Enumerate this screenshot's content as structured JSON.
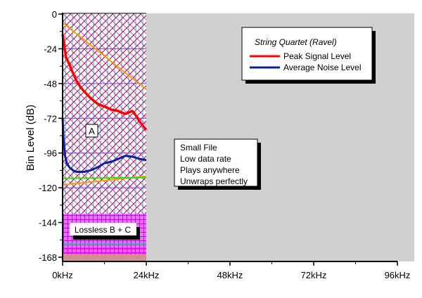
{
  "chart_data": {
    "type": "line",
    "title": "",
    "xlabel": "",
    "ylabel": "Bin Level (dB)",
    "xlim": [
      0,
      96
    ],
    "ylim": [
      -171,
      0
    ],
    "x_ticks": [
      0,
      24,
      48,
      72,
      96
    ],
    "x_tick_labels": [
      "0kHz",
      "24kHz",
      "48kHz",
      "72kHz",
      "96kHz"
    ],
    "y_ticks": [
      0,
      -24,
      -48,
      -72,
      -96,
      -120,
      -144,
      -168
    ],
    "y_tick_labels": [
      "0",
      "-24",
      "-48",
      "-72",
      "-96",
      "-120",
      "-144",
      "-168"
    ],
    "legend": {
      "title": "String Quartet (Ravel)",
      "placement": "top-right",
      "entries": [
        "Peak Signal Level",
        "Average Noise Level"
      ]
    },
    "series": [
      {
        "name": "Peak Signal Level",
        "color": "#ff0000",
        "x": [
          0,
          0.5,
          1,
          2,
          3,
          4,
          5,
          6,
          8,
          10,
          12,
          14,
          16,
          18,
          19,
          20,
          21,
          22,
          23,
          24
        ],
        "y": [
          -14,
          -22,
          -30,
          -35,
          -41,
          -46,
          -50,
          -53,
          -58,
          -62,
          -64,
          -66,
          -67,
          -69,
          -68,
          -67,
          -70,
          -74,
          -77,
          -80
        ]
      },
      {
        "name": "Average Noise Level",
        "color": "#0a1fa0",
        "x": [
          0,
          0.3,
          0.7,
          1.2,
          2,
          3,
          4,
          6,
          8,
          10,
          12,
          14,
          16,
          18,
          20,
          22,
          24
        ],
        "y": [
          -72,
          -88,
          -98,
          -103,
          -106,
          -108,
          -109,
          -109,
          -108,
          -106,
          -103,
          -102,
          -100,
          -98,
          -98.5,
          -100,
          -101
        ]
      },
      {
        "name": "orange-upper",
        "color": "#ff9900",
        "x": [
          0,
          24
        ],
        "y": [
          -6,
          -52
        ]
      },
      {
        "name": "orange-lower",
        "color": "#ff9900",
        "x": [
          0,
          24
        ],
        "y": [
          -118,
          -112
        ]
      },
      {
        "name": "green",
        "color": "#33dd00",
        "x": [
          0,
          24
        ],
        "y": [
          -113.5,
          -113
        ]
      }
    ],
    "regions": [
      {
        "label": "A",
        "x": [
          0,
          24
        ],
        "y": [
          -171,
          0
        ]
      },
      {
        "label": "Lossless B + C",
        "x": [
          0,
          24
        ],
        "y": [
          -171,
          -138
        ]
      }
    ],
    "annotations": [
      "A",
      "Lossless B + C"
    ],
    "note_lines": [
      "Small File",
      "Low data rate",
      "Plays anywhere",
      "Unwraps perfectly"
    ]
  }
}
